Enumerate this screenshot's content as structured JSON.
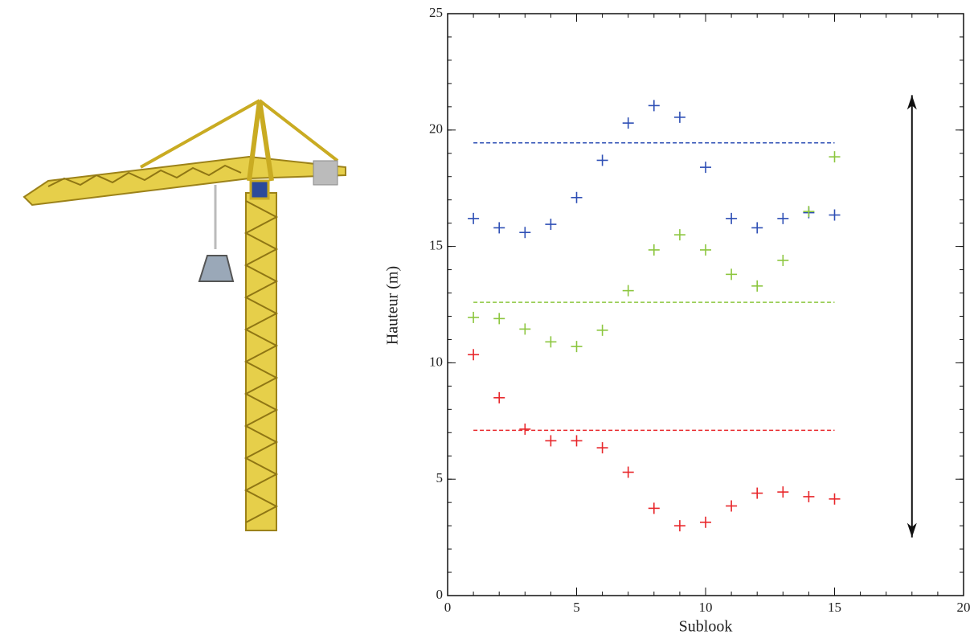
{
  "chart_data": {
    "type": "scatter",
    "xlabel": "Sublook",
    "ylabel": "Hauteur (m)",
    "xlim": [
      0,
      20
    ],
    "ylim": [
      0,
      25
    ],
    "xticks": [
      0,
      5,
      10,
      15,
      20
    ],
    "yticks": [
      0,
      5,
      10,
      15,
      20,
      25
    ],
    "minor_tick_step": 1,
    "x": [
      1,
      2,
      3,
      4,
      5,
      6,
      7,
      8,
      9,
      10,
      11,
      12,
      13,
      14,
      15
    ],
    "series": [
      {
        "color": "#2e4fb5",
        "values": [
          16.2,
          15.8,
          15.6,
          15.95,
          17.1,
          18.7,
          20.3,
          21.05,
          20.55,
          18.4,
          16.2,
          15.8,
          16.2,
          16.45,
          16.35
        ]
      },
      {
        "color": "#8cc63f",
        "values": [
          11.95,
          11.9,
          11.45,
          10.9,
          10.7,
          11.4,
          13.1,
          14.85,
          15.5,
          14.85,
          13.8,
          13.3,
          14.4,
          16.5,
          18.85
        ]
      },
      {
        "color": "#e8262a",
        "values": [
          10.35,
          8.5,
          7.15,
          6.65,
          6.65,
          6.35,
          5.3,
          3.75,
          3.0,
          3.15,
          3.85,
          4.4,
          4.45,
          4.25,
          4.15
        ]
      }
    ],
    "hlines": [
      {
        "color": "#2e4fb5",
        "y": 19.45,
        "x": [
          1,
          15
        ]
      },
      {
        "color": "#8cc63f",
        "y": 12.6,
        "x": [
          1,
          15
        ]
      },
      {
        "color": "#e8262a",
        "y": 7.1,
        "x": [
          1,
          15
        ]
      }
    ],
    "arrow": {
      "x": 18,
      "y": [
        2.5,
        21.5
      ]
    }
  }
}
